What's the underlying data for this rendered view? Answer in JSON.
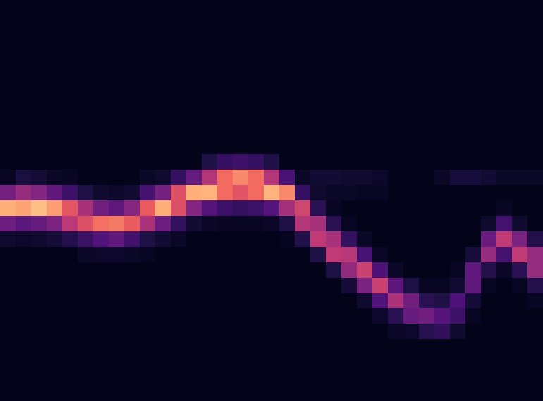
{
  "chart_data": {
    "type": "heatmap",
    "tick_labels": false,
    "xlim": [
      -0.5,
      34.5
    ],
    "ylim": [
      25.5,
      -0.5
    ],
    "zlim": [
      0,
      1
    ],
    "z": [
      [
        0,
        0,
        0,
        0,
        0,
        0,
        0,
        0,
        0,
        0,
        0,
        0,
        0,
        0,
        0,
        0,
        0,
        0,
        0,
        0,
        0,
        0,
        0,
        0,
        0,
        0,
        0,
        0,
        0,
        0,
        0,
        0,
        0,
        0,
        0
      ],
      [
        0,
        0,
        0,
        0,
        0,
        0,
        0,
        0,
        0,
        0,
        0,
        0,
        0,
        0,
        0,
        0,
        0,
        0,
        0,
        0,
        0,
        0,
        0,
        0,
        0,
        0,
        0,
        0,
        0,
        0,
        0,
        0,
        0,
        0,
        0
      ],
      [
        0,
        0,
        0,
        0,
        0,
        0,
        0,
        0,
        0,
        0,
        0,
        0,
        0,
        0,
        0,
        0,
        0,
        0,
        0,
        0,
        0,
        0,
        0,
        0,
        0,
        0,
        0,
        0,
        0,
        0,
        0,
        0,
        0,
        0,
        0
      ],
      [
        0,
        0,
        0,
        0,
        0,
        0,
        0,
        0,
        0,
        0,
        0,
        0,
        0,
        0,
        0,
        0,
        0,
        0,
        0,
        0,
        0,
        0,
        0,
        0,
        0,
        0,
        0,
        0,
        0,
        0,
        0,
        0,
        0,
        0,
        0
      ],
      [
        0,
        0,
        0,
        0,
        0,
        0,
        0,
        0,
        0,
        0,
        0,
        0,
        0,
        0,
        0,
        0,
        0,
        0,
        0,
        0,
        0,
        0,
        0,
        0,
        0,
        0,
        0,
        0,
        0,
        0,
        0,
        0,
        0,
        0,
        0
      ],
      [
        0,
        0,
        0,
        0,
        0,
        0,
        0,
        0,
        0,
        0,
        0,
        0,
        0,
        0,
        0,
        0,
        0,
        0,
        0,
        0,
        0,
        0,
        0,
        0,
        0,
        0,
        0,
        0,
        0,
        0,
        0,
        0,
        0,
        0,
        0
      ],
      [
        0,
        0,
        0,
        0,
        0,
        0,
        0,
        0,
        0,
        0,
        0,
        0,
        0,
        0,
        0,
        0,
        0,
        0,
        0,
        0,
        0,
        0,
        0,
        0,
        0,
        0,
        0,
        0,
        0,
        0,
        0,
        0,
        0,
        0,
        0
      ],
      [
        0,
        0,
        0,
        0,
        0,
        0,
        0,
        0,
        0,
        0,
        0,
        0,
        0,
        0,
        0,
        0,
        0,
        0,
        0,
        0,
        0,
        0,
        0,
        0,
        0,
        0,
        0,
        0,
        0,
        0,
        0,
        0,
        0,
        0,
        0
      ],
      [
        0,
        0,
        0,
        0,
        0,
        0,
        0,
        0,
        0,
        0,
        0,
        0,
        0,
        0,
        0,
        0,
        0,
        0,
        0,
        0,
        0,
        0,
        0,
        0,
        0,
        0,
        0,
        0,
        0,
        0,
        0,
        0,
        0,
        0,
        0
      ],
      [
        0,
        0,
        0,
        0,
        0,
        0,
        0,
        0,
        0,
        0,
        0,
        0,
        0,
        0,
        0,
        0,
        0,
        0,
        0,
        0,
        0,
        0,
        0,
        0,
        0,
        0,
        0,
        0,
        0,
        0,
        0,
        0,
        0,
        0,
        0
      ],
      [
        0,
        0,
        0,
        0,
        0,
        0,
        0,
        0,
        0,
        0,
        0,
        0,
        0,
        0.11,
        0.18,
        0.2,
        0.18,
        0.11,
        0,
        0,
        0,
        0,
        0,
        0,
        0,
        0,
        0,
        0,
        0,
        0,
        0,
        0,
        0,
        0,
        0
      ],
      [
        0.02,
        0.09,
        0.07,
        0.03,
        0.02,
        0,
        0,
        0,
        0,
        0.03,
        0.05,
        0.17,
        0.32,
        0.52,
        0.72,
        0.78,
        0.72,
        0.52,
        0.23,
        0.03,
        0.06,
        0.06,
        0.05,
        0.05,
        0.04,
        0,
        0,
        0,
        0.03,
        0.08,
        0.08,
        0.06,
        0.03,
        0.03,
        0.03
      ],
      [
        0.36,
        0.45,
        0.4,
        0.3,
        0.2,
        0.1,
        0.05,
        0.04,
        0.06,
        0.22,
        0.36,
        0.64,
        0.85,
        0.86,
        0.72,
        0.65,
        0.72,
        0.86,
        0.78,
        0.18,
        0.05,
        0.03,
        0.03,
        0.02,
        0.02,
        0,
        0,
        0,
        0,
        0,
        0,
        0,
        0,
        0,
        0
      ],
      [
        0.85,
        0.83,
        0.88,
        0.82,
        0.66,
        0.49,
        0.35,
        0.3,
        0.41,
        0.68,
        0.85,
        0.64,
        0.4,
        0.27,
        0.2,
        0.17,
        0.2,
        0.27,
        0.48,
        0.6,
        0.14,
        0.02,
        0,
        0,
        0,
        0,
        0,
        0,
        0,
        0,
        0,
        0,
        0.02,
        0,
        0
      ],
      [
        0.34,
        0.29,
        0.32,
        0.38,
        0.54,
        0.64,
        0.73,
        0.75,
        0.68,
        0.5,
        0.34,
        0.17,
        0.06,
        0.03,
        0.02,
        0.02,
        0.02,
        0.03,
        0.1,
        0.52,
        0.49,
        0.14,
        0.02,
        0,
        0,
        0,
        0,
        0,
        0,
        0,
        0,
        0.05,
        0.22,
        0.05,
        0
      ],
      [
        0.05,
        0.04,
        0.05,
        0.07,
        0.12,
        0.19,
        0.26,
        0.3,
        0.21,
        0.1,
        0.06,
        0.03,
        0,
        0,
        0,
        0,
        0,
        0,
        0.01,
        0.11,
        0.55,
        0.49,
        0.17,
        0.03,
        0,
        0,
        0,
        0,
        0,
        0,
        0,
        0.33,
        0.55,
        0.38,
        0.12
      ],
      [
        0,
        0,
        0,
        0,
        0,
        0.03,
        0.04,
        0.04,
        0.03,
        0.02,
        0,
        0,
        0,
        0,
        0,
        0,
        0,
        0,
        0,
        0,
        0.1,
        0.55,
        0.53,
        0.23,
        0.03,
        0,
        0,
        0,
        0,
        0,
        0.08,
        0.45,
        0.22,
        0.55,
        0.45
      ],
      [
        0,
        0,
        0,
        0,
        0,
        0,
        0,
        0,
        0,
        0,
        0,
        0,
        0,
        0,
        0,
        0,
        0,
        0,
        0,
        0,
        0,
        0.1,
        0.44,
        0.58,
        0.24,
        0.03,
        0,
        0,
        0,
        0.02,
        0.3,
        0.12,
        0.03,
        0.14,
        0.45
      ],
      [
        0,
        0,
        0,
        0,
        0,
        0,
        0,
        0,
        0,
        0,
        0,
        0,
        0,
        0,
        0,
        0,
        0,
        0,
        0,
        0,
        0,
        0,
        0.07,
        0.38,
        0.58,
        0.29,
        0.1,
        0.02,
        0.02,
        0.06,
        0.3,
        0.02,
        0,
        0.02,
        0.12
      ],
      [
        0,
        0,
        0,
        0,
        0,
        0,
        0,
        0,
        0,
        0,
        0,
        0,
        0,
        0,
        0,
        0,
        0,
        0,
        0,
        0,
        0,
        0,
        0,
        0.05,
        0.26,
        0.5,
        0.35,
        0.14,
        0.1,
        0.25,
        0.07,
        0,
        0,
        0,
        0.02
      ],
      [
        0,
        0,
        0,
        0,
        0,
        0,
        0,
        0,
        0,
        0,
        0,
        0,
        0,
        0,
        0,
        0,
        0,
        0,
        0,
        0,
        0,
        0,
        0,
        0,
        0.04,
        0.14,
        0.32,
        0.35,
        0.27,
        0.2,
        0.02,
        0,
        0,
        0,
        0
      ],
      [
        0,
        0,
        0,
        0,
        0,
        0,
        0,
        0,
        0,
        0,
        0,
        0,
        0,
        0,
        0,
        0,
        0,
        0,
        0,
        0,
        0,
        0,
        0,
        0,
        0,
        0.03,
        0.04,
        0.13,
        0.16,
        0.05,
        0,
        0,
        0,
        0,
        0
      ],
      [
        0,
        0,
        0,
        0,
        0,
        0,
        0,
        0,
        0,
        0,
        0,
        0,
        0,
        0,
        0,
        0,
        0,
        0,
        0,
        0,
        0,
        0,
        0,
        0,
        0,
        0,
        0,
        0,
        0,
        0,
        0,
        0,
        0,
        0,
        0
      ],
      [
        0,
        0,
        0,
        0,
        0,
        0,
        0,
        0,
        0,
        0,
        0,
        0,
        0,
        0,
        0,
        0,
        0,
        0,
        0,
        0,
        0,
        0,
        0,
        0,
        0,
        0,
        0,
        0,
        0,
        0,
        0,
        0,
        0,
        0,
        0
      ],
      [
        0,
        0,
        0,
        0,
        0,
        0,
        0,
        0,
        0,
        0,
        0,
        0,
        0,
        0,
        0,
        0,
        0,
        0,
        0,
        0,
        0,
        0,
        0,
        0,
        0,
        0,
        0,
        0,
        0,
        0,
        0,
        0,
        0,
        0,
        0
      ],
      [
        0,
        0,
        0,
        0,
        0,
        0,
        0,
        0,
        0,
        0,
        0,
        0,
        0,
        0,
        0,
        0,
        0,
        0,
        0,
        0,
        0,
        0,
        0,
        0,
        0,
        0,
        0,
        0,
        0,
        0,
        0,
        0,
        0,
        0,
        0
      ]
    ]
  }
}
